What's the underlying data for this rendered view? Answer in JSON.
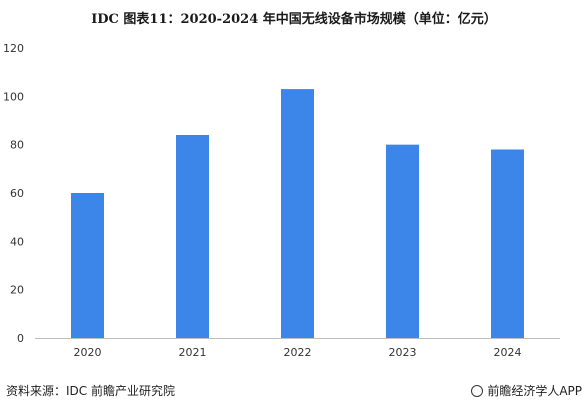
{
  "title": "IDC  图表11：2020-2024 年中国无线设备市场规模（单位：亿元）",
  "chart_data": {
    "type": "bar",
    "categories": [
      "2020",
      "2021",
      "2022",
      "2023",
      "2024"
    ],
    "values": [
      60,
      84,
      103,
      80,
      78
    ],
    "ylim": [
      0,
      120
    ],
    "yticks": [
      0,
      20,
      40,
      60,
      80,
      100,
      120
    ],
    "grid": false,
    "bar_color": "#3b86e8",
    "xlabel": "",
    "ylabel": ""
  },
  "footer": {
    "source": "资料来源：IDC 前瞻产业研究院",
    "brand": "前瞻经济学人APP"
  },
  "icons": {
    "brand": "brand-logo-icon"
  }
}
